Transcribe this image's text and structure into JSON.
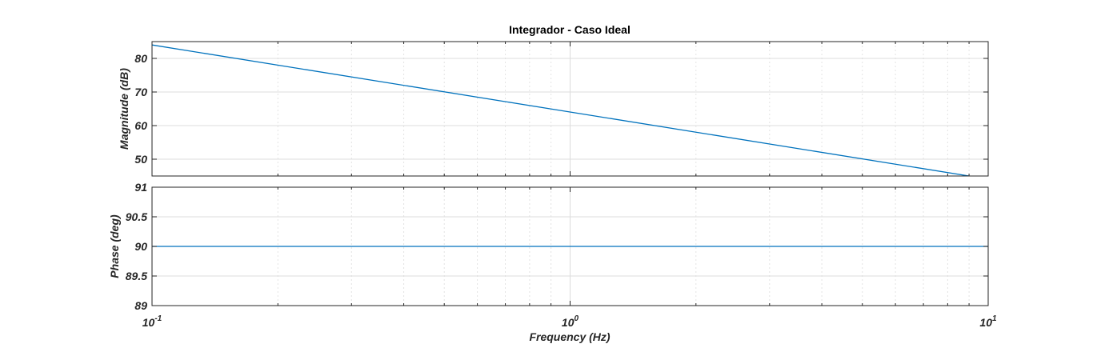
{
  "chart_data": {
    "type": "line",
    "title": "Integrador - Caso Ideal",
    "xlabel": "Frequency  (Hz)",
    "xscale": "log",
    "xlim": [
      0.1,
      10
    ],
    "x_ticks": [
      {
        "base": "10",
        "exp": "-1"
      },
      {
        "base": "10",
        "exp": "0"
      },
      {
        "base": "10",
        "exp": "1"
      }
    ],
    "grid": true,
    "line_color": "#0072bd",
    "panels": [
      {
        "ylabel": "Magnitude (dB)",
        "ylim": [
          45,
          85
        ],
        "yticks": [
          "50",
          "60",
          "70",
          "80"
        ],
        "series": [
          {
            "x": [
              0.1,
              9.0
            ],
            "y": [
              84.0,
              45.0
            ]
          }
        ]
      },
      {
        "ylabel": "Phase (deg)",
        "ylim": [
          89,
          91
        ],
        "yticks": [
          "89",
          "89.5",
          "90",
          "90.5",
          "91"
        ],
        "series": [
          {
            "x": [
              0.1,
              10
            ],
            "y": [
              90,
              90
            ]
          }
        ]
      }
    ]
  }
}
